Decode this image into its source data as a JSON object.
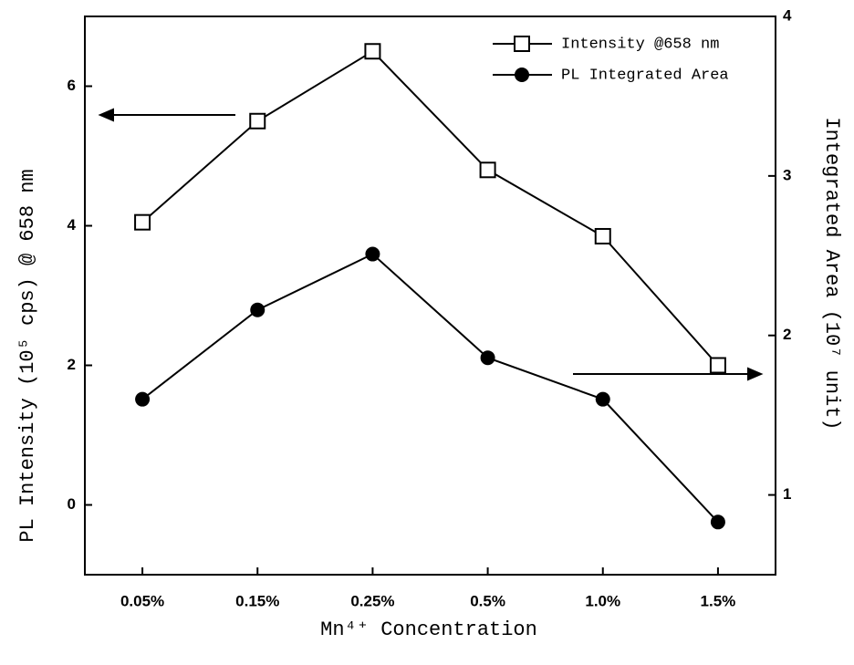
{
  "chart_data": {
    "type": "line",
    "x_label": "Mn⁴⁺ Concentration",
    "y_label": "PL Intensity (10⁵ cps) @ 658 nm",
    "y2_label": "Integrated Area (10⁷ unit)",
    "categories": [
      "0.05%",
      "0.15%",
      "0.25%",
      "0.5%",
      "1.0%",
      "1.5%"
    ],
    "series": [
      {
        "name": "Intensity @658 nm",
        "color": "#000000",
        "marker": "open-square",
        "values": [
          4.05,
          5.5,
          6.5,
          4.8,
          3.85,
          2.0
        ]
      },
      {
        "name": "PL Integrated Area",
        "color": "#000000",
        "marker": "filled-circle",
        "axis": "y2",
        "values": [
          1.6,
          2.16,
          2.51,
          1.86,
          1.6,
          0.83
        ]
      }
    ],
    "ylim": [
      -1,
      7
    ],
    "yticks": [
      0,
      2,
      4,
      6
    ],
    "y2lim": [
      0.5,
      4
    ],
    "y2ticks": [
      1,
      2,
      3,
      4
    ],
    "legend": "upper-right"
  }
}
